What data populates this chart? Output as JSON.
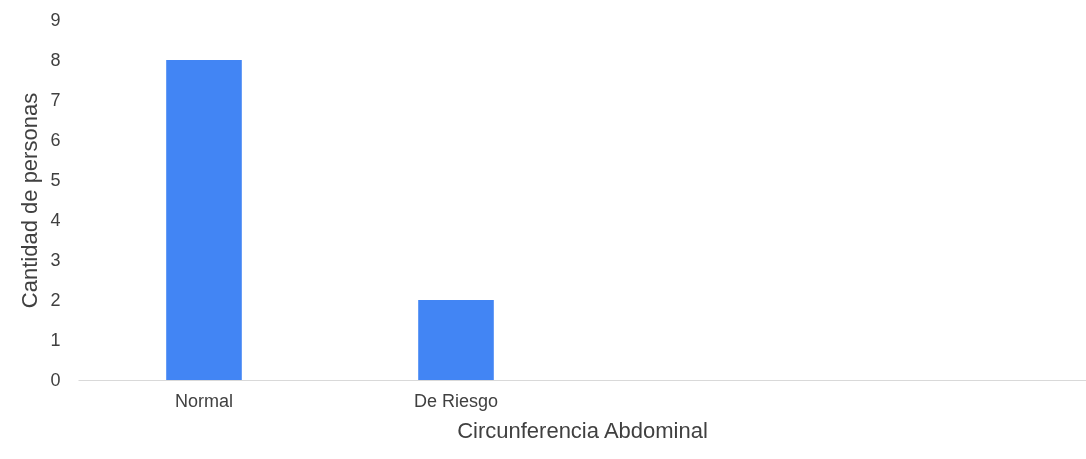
{
  "chart_data": {
    "type": "bar",
    "xlabel": "Circunferencia Abdominal",
    "ylabel": "Cantidad de personas",
    "categories": [
      "Normal",
      "De Riesgo",
      null,
      null
    ],
    "values": [
      8,
      2,
      null,
      null
    ],
    "color": "#4285f4",
    "ylim": [
      0,
      9
    ],
    "yticks": [
      0,
      1,
      2,
      3,
      4,
      5,
      6,
      7,
      8,
      9
    ],
    "grid": false
  }
}
